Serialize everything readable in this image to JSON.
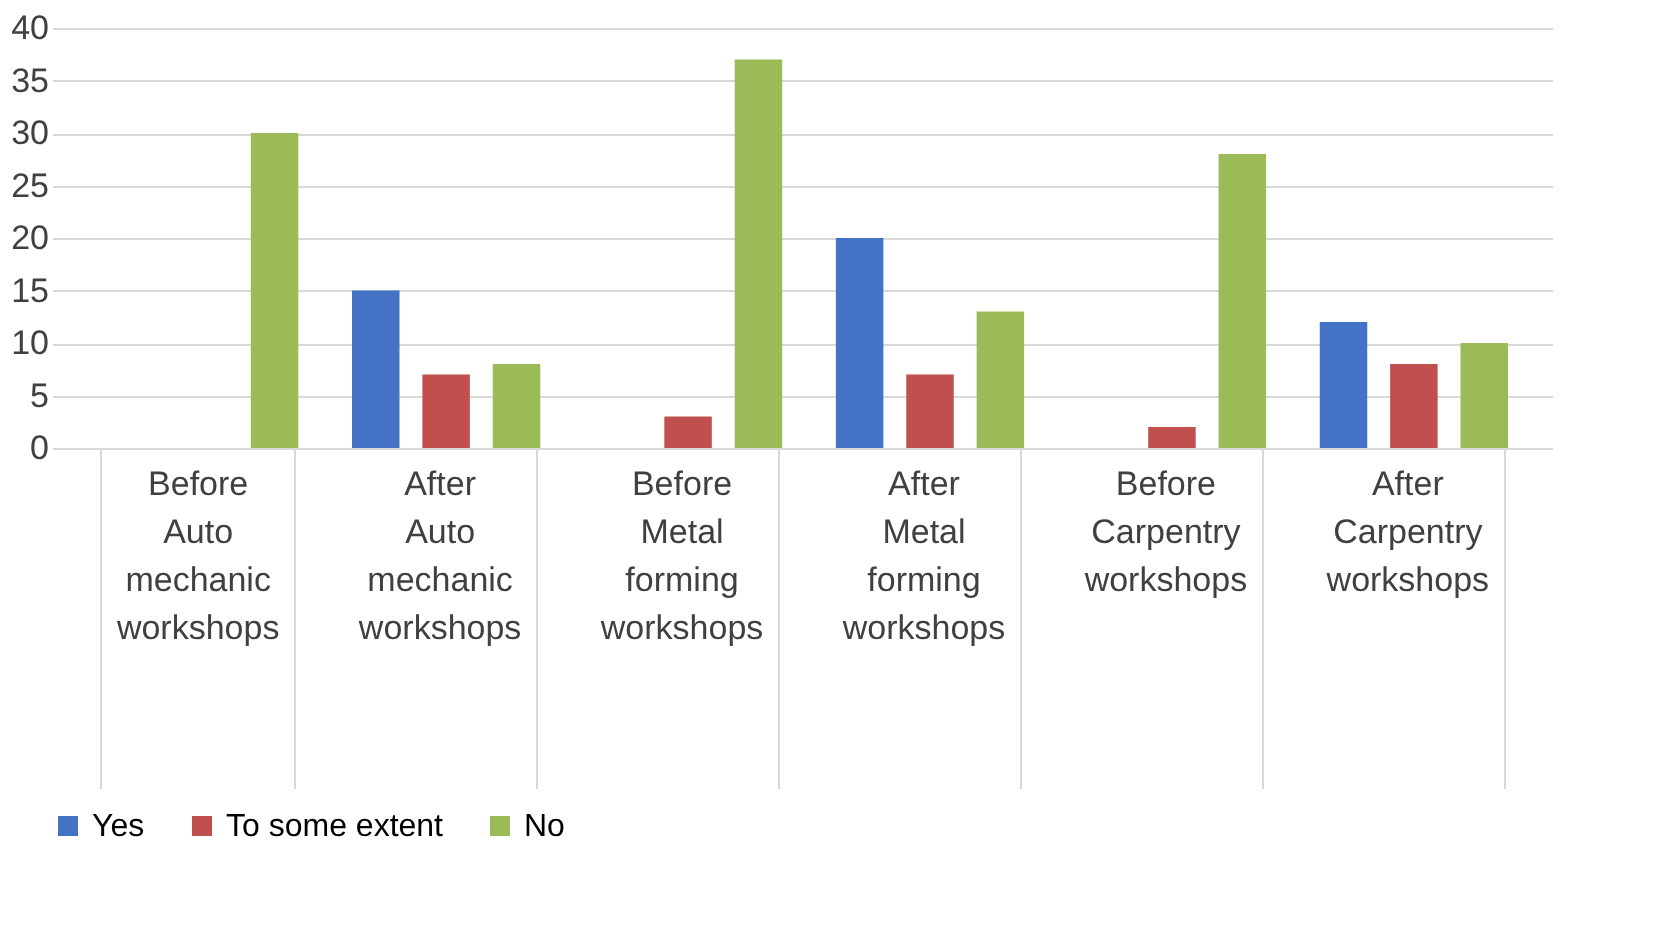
{
  "chart_data": {
    "type": "bar",
    "categories": [
      "Before\nAuto mechanic workshops",
      "After\nAuto mechanic workshops",
      "Before\nMetal forming workshops",
      "After\nMetal forming workshops",
      "Before\nCarpentry workshops",
      "After\nCarpentry workshops"
    ],
    "series": [
      {
        "name": "Yes",
        "color": "#4472c4",
        "values": [
          0,
          15,
          0,
          20,
          0,
          12
        ]
      },
      {
        "name": "To some extent",
        "color": "#c0504d",
        "values": [
          0,
          7,
          3,
          7,
          2,
          8
        ]
      },
      {
        "name": "No",
        "color": "#9bbb59",
        "values": [
          30,
          8,
          37,
          13,
          28,
          10
        ]
      }
    ],
    "ylim": [
      0,
      40
    ],
    "yticks": [
      0,
      5,
      10,
      15,
      20,
      25,
      30,
      35,
      40
    ],
    "grid": "y",
    "legend": "bottom"
  }
}
